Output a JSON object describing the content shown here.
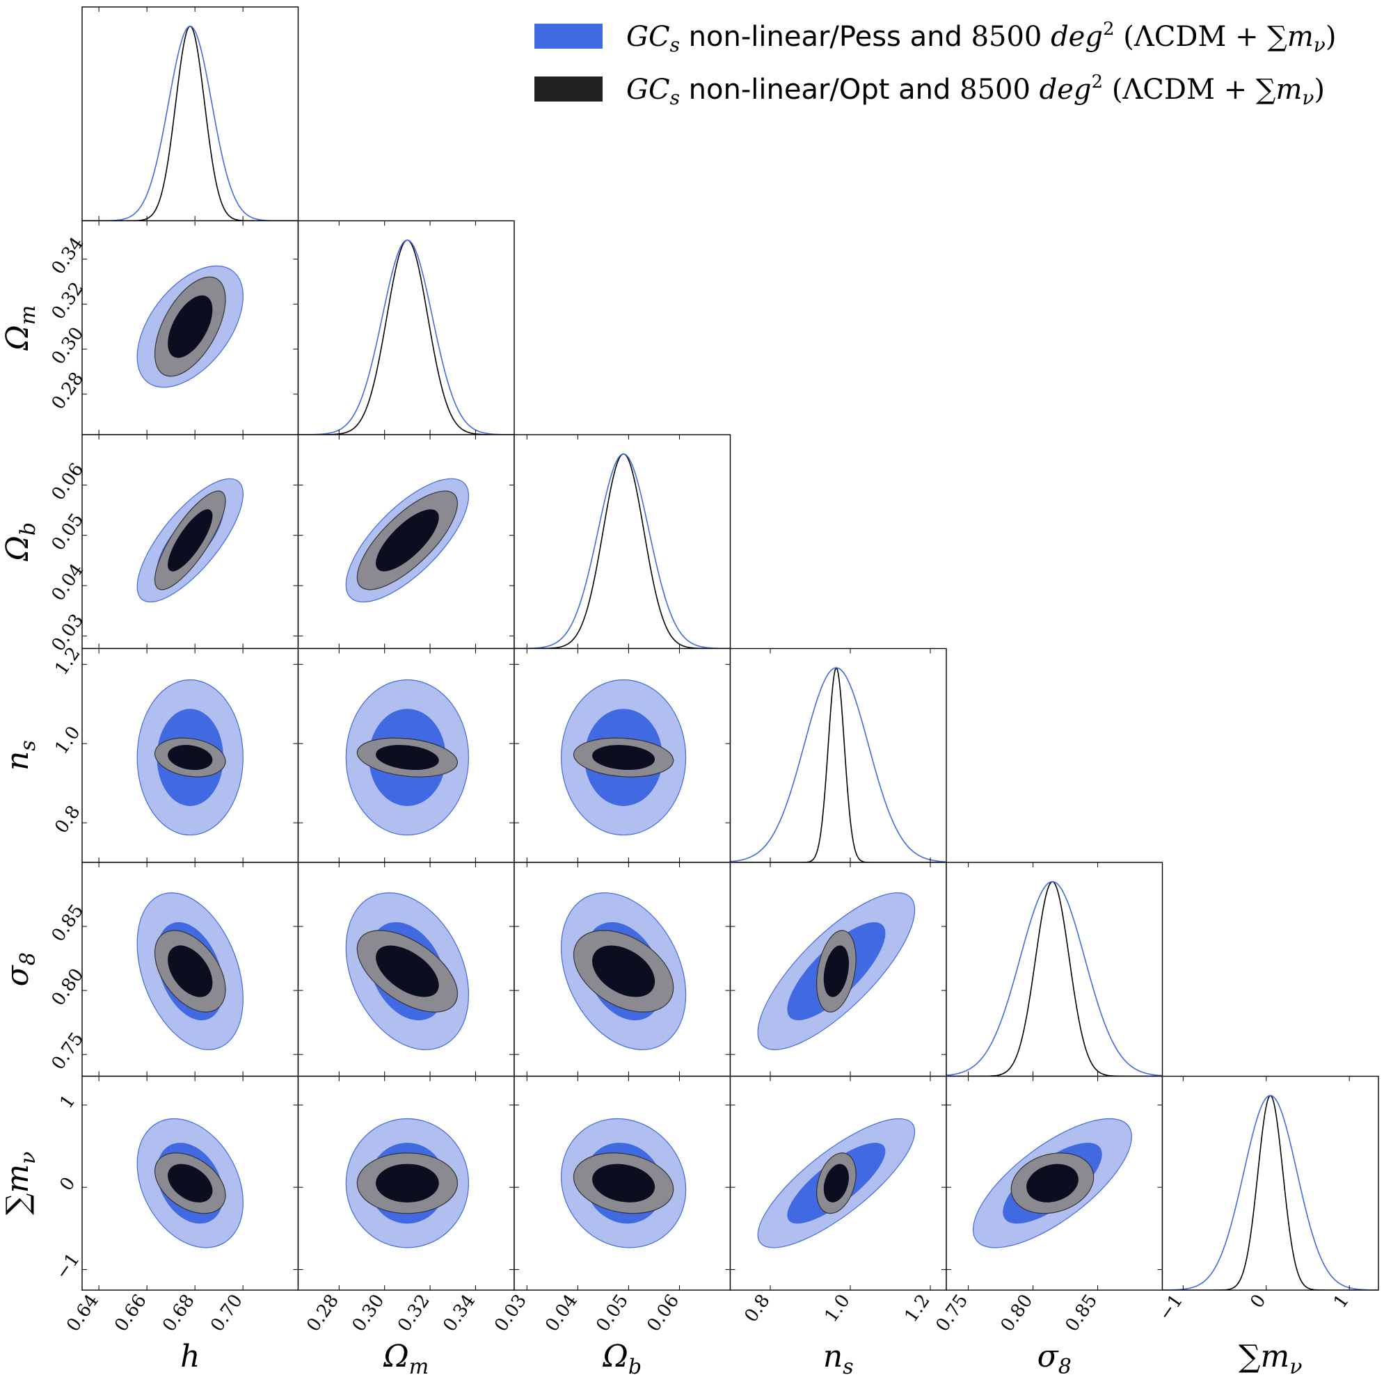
{
  "chart_data": {
    "type": "triangle-corner",
    "parameters": [
      {
        "key": "h",
        "label": "h",
        "sub": "",
        "fid": 0.678,
        "sig_pess": 0.009,
        "sig_opt": 0.006,
        "range": [
          0.633,
          0.723
        ],
        "ticks": [
          0.64,
          0.66,
          0.68,
          0.7
        ],
        "ticklabels": [
          "0.64",
          "0.66",
          "0.68",
          "0.70"
        ]
      },
      {
        "key": "omega_m",
        "label": "Ω",
        "sub": "m",
        "fid": 0.31,
        "sig_pess": 0.011,
        "sig_opt": 0.009,
        "range": [
          0.262,
          0.357
        ],
        "ticks": [
          0.28,
          0.3,
          0.32,
          0.34
        ],
        "ticklabels": [
          "0.28",
          "0.30",
          "0.32",
          "0.34"
        ]
      },
      {
        "key": "omega_b",
        "label": "Ω",
        "sub": "b",
        "fid": 0.049,
        "sig_pess": 0.005,
        "sig_opt": 0.004,
        "range": [
          0.0275,
          0.07
        ],
        "ticks": [
          0.03,
          0.04,
          0.05,
          0.06
        ],
        "ticklabels": [
          "0.03",
          "0.04",
          "0.05",
          "0.06"
        ]
      },
      {
        "key": "n_s",
        "label": "n",
        "sub": "s",
        "fid": 0.965,
        "sig_pess": 0.08,
        "sig_opt": 0.02,
        "range": [
          0.7,
          1.24
        ],
        "ticks": [
          0.8,
          1.0,
          1.2
        ],
        "ticklabels": [
          "0.8",
          "1.0",
          "1.2"
        ]
      },
      {
        "key": "sigma_8",
        "label": "σ",
        "sub": "8",
        "fid": 0.815,
        "sig_pess": 0.025,
        "sig_opt": 0.013,
        "range": [
          0.733,
          0.9
        ],
        "ticks": [
          0.75,
          0.8,
          0.85
        ],
        "ticklabels": [
          "0.75",
          "0.80",
          "0.85"
        ]
      },
      {
        "key": "sum_m_nu",
        "label": "∑m",
        "sub": "ν",
        "fid": 0.05,
        "sig_pess": 0.32,
        "sig_opt": 0.15,
        "range": [
          -1.25,
          1.35
        ],
        "ticks": [
          -1,
          0,
          1
        ],
        "ticklabels": [
          "−1",
          "0",
          "1"
        ]
      }
    ],
    "correlations_pess": [
      [
        0,
        1,
        0.5
      ],
      [
        0,
        2,
        0.75
      ],
      [
        1,
        2,
        0.72
      ],
      [
        0,
        4,
        -0.35
      ],
      [
        1,
        4,
        -0.3
      ],
      [
        2,
        4,
        -0.3
      ],
      [
        3,
        4,
        0.78
      ],
      [
        0,
        5,
        -0.3
      ],
      [
        2,
        5,
        -0.1
      ],
      [
        3,
        5,
        0.8
      ],
      [
        4,
        5,
        0.72
      ]
    ],
    "correlations_opt": [
      [
        0,
        1,
        0.55
      ],
      [
        0,
        2,
        0.8
      ],
      [
        1,
        2,
        0.75
      ],
      [
        0,
        3,
        -0.2
      ],
      [
        1,
        3,
        -0.25
      ],
      [
        2,
        3,
        -0.15
      ],
      [
        0,
        4,
        -0.45
      ],
      [
        1,
        4,
        -0.55
      ],
      [
        2,
        4,
        -0.4
      ],
      [
        3,
        4,
        0.3
      ],
      [
        0,
        5,
        -0.4
      ],
      [
        1,
        5,
        0
      ],
      [
        2,
        5,
        -0.2
      ],
      [
        3,
        5,
        0.3
      ],
      [
        4,
        5,
        0.2
      ]
    ],
    "confidence_levels": [
      "68%",
      "95%"
    ],
    "series": [
      {
        "name": "pess",
        "label": "non-linear/Pess and",
        "color": "#4169E1",
        "color_95": "#b0bff0"
      },
      {
        "name": "opt",
        "label": "non-linear/Opt and",
        "color": "#222222",
        "color_68": "#0a0e1e",
        "color_95": "#8a8a90"
      }
    ],
    "legend": {
      "position": "top-right",
      "prefix": "GC",
      "prefix_sub": "s",
      "area": "8500",
      "unit": "deg",
      "unit_sup": "2",
      "model": "(ΛCDM + ∑",
      "model_m": "m",
      "model_sub": "ν",
      "model_close": ")"
    }
  }
}
